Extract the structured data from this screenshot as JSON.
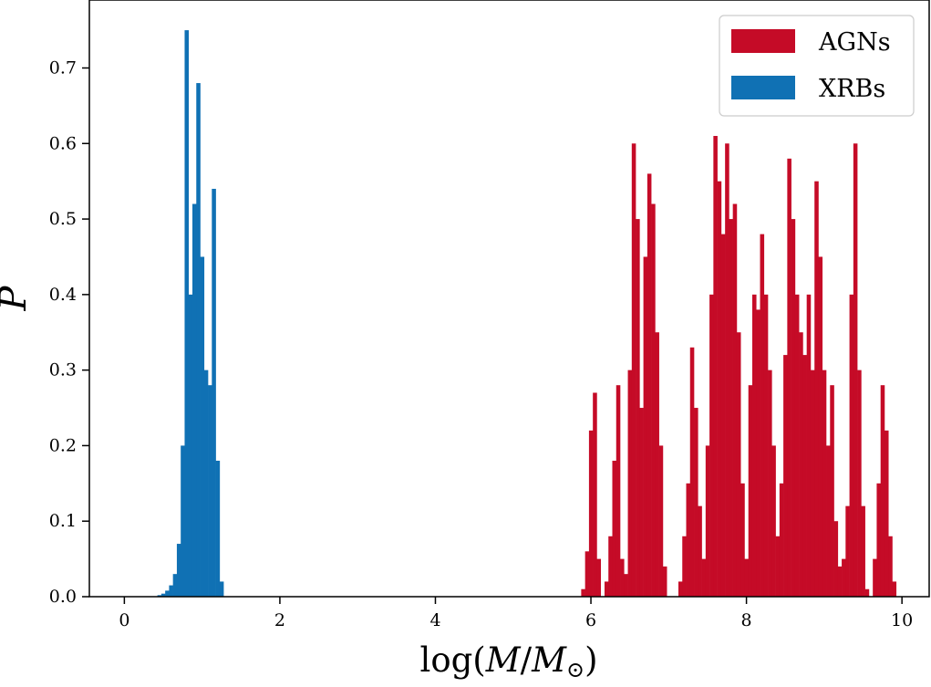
{
  "chart_data": {
    "type": "bar",
    "title": "",
    "xlabel": "log(M/M⊙)",
    "ylabel": "P",
    "xlim": [
      -0.45,
      10.35
    ],
    "ylim": [
      0.0,
      0.79
    ],
    "xticks": [
      0,
      2,
      4,
      6,
      8,
      10
    ],
    "yticks": [
      0.0,
      0.1,
      0.2,
      0.3,
      0.4,
      0.5,
      0.6,
      0.7
    ],
    "ytick_labels": [
      "0.0",
      "0.1",
      "0.2",
      "0.3",
      "0.4",
      "0.5",
      "0.6",
      "0.7"
    ],
    "grid": false,
    "legend_position": "top-right",
    "series": [
      {
        "name": "AGNs",
        "color": "#c50b27",
        "x": [
          5.9,
          5.95,
          6.0,
          6.05,
          6.1,
          6.15,
          6.2,
          6.25,
          6.3,
          6.35,
          6.4,
          6.45,
          6.5,
          6.55,
          6.6,
          6.65,
          6.7,
          6.75,
          6.8,
          6.85,
          6.9,
          6.95,
          7.0,
          7.05,
          7.1,
          7.15,
          7.2,
          7.25,
          7.3,
          7.35,
          7.4,
          7.45,
          7.5,
          7.55,
          7.6,
          7.65,
          7.7,
          7.75,
          7.8,
          7.85,
          7.9,
          7.95,
          8.0,
          8.05,
          8.1,
          8.15,
          8.2,
          8.25,
          8.3,
          8.35,
          8.4,
          8.45,
          8.5,
          8.55,
          8.6,
          8.65,
          8.7,
          8.75,
          8.8,
          8.85,
          8.9,
          8.95,
          9.0,
          9.05,
          9.1,
          9.15,
          9.2,
          9.25,
          9.3,
          9.35,
          9.4,
          9.45,
          9.5,
          9.55,
          9.6,
          9.65,
          9.7,
          9.75,
          9.8,
          9.85,
          9.9,
          9.95
        ],
        "values": [
          0.01,
          0.06,
          0.22,
          0.27,
          0.05,
          0.0,
          0.02,
          0.08,
          0.18,
          0.28,
          0.05,
          0.03,
          0.3,
          0.6,
          0.5,
          0.25,
          0.45,
          0.56,
          0.52,
          0.35,
          0.2,
          0.04,
          0.0,
          0.0,
          0.0,
          0.02,
          0.08,
          0.15,
          0.33,
          0.25,
          0.12,
          0.05,
          0.2,
          0.4,
          0.61,
          0.55,
          0.48,
          0.6,
          0.5,
          0.52,
          0.35,
          0.15,
          0.05,
          0.28,
          0.4,
          0.38,
          0.48,
          0.4,
          0.3,
          0.2,
          0.08,
          0.15,
          0.32,
          0.58,
          0.5,
          0.4,
          0.35,
          0.32,
          0.4,
          0.3,
          0.55,
          0.45,
          0.3,
          0.2,
          0.28,
          0.1,
          0.04,
          0.05,
          0.12,
          0.4,
          0.6,
          0.3,
          0.12,
          0.01,
          0.0,
          0.05,
          0.15,
          0.28,
          0.22,
          0.08,
          0.02,
          0.0
        ]
      },
      {
        "name": "XRBs",
        "color": "#1071b4",
        "x": [
          0.4,
          0.45,
          0.5,
          0.55,
          0.6,
          0.65,
          0.7,
          0.75,
          0.8,
          0.85,
          0.9,
          0.95,
          1.0,
          1.05,
          1.1,
          1.15,
          1.2,
          1.25,
          1.3
        ],
        "values": [
          0.0,
          0.002,
          0.004,
          0.008,
          0.015,
          0.03,
          0.07,
          0.2,
          0.75,
          0.4,
          0.52,
          0.68,
          0.45,
          0.3,
          0.28,
          0.54,
          0.18,
          0.02,
          0.0
        ]
      }
    ]
  }
}
